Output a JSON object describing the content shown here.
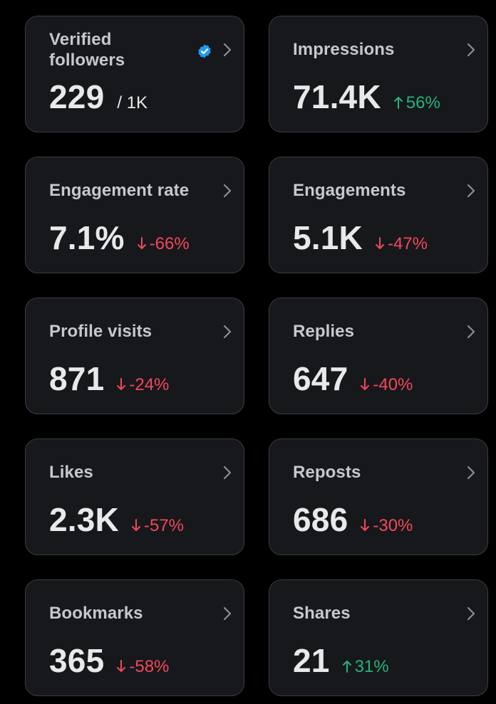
{
  "colors": {
    "background": "#000000",
    "card": "#16181c",
    "card_border": "#3a3d42",
    "label": "#c5c8cc",
    "value": "#e7e9ea",
    "positive": "#26b37a",
    "negative": "#f4475a",
    "verified_badge": "#1d9bf0"
  },
  "cards": [
    {
      "label": "Verified followers",
      "value": "229",
      "suffix": "/ 1K",
      "icon": "verified-badge-icon"
    },
    {
      "label": "Impressions",
      "value": "71.4K",
      "delta": "56%",
      "direction": "up"
    },
    {
      "label": "Engagement rate",
      "value": "7.1%",
      "delta": "-66%",
      "direction": "down"
    },
    {
      "label": "Engagements",
      "value": "5.1K",
      "delta": "-47%",
      "direction": "down"
    },
    {
      "label": "Profile visits",
      "value": "871",
      "delta": "-24%",
      "direction": "down"
    },
    {
      "label": "Replies",
      "value": "647",
      "delta": "-40%",
      "direction": "down"
    },
    {
      "label": "Likes",
      "value": "2.3K",
      "delta": "-57%",
      "direction": "down"
    },
    {
      "label": "Reposts",
      "value": "686",
      "delta": "-30%",
      "direction": "down"
    },
    {
      "label": "Bookmarks",
      "value": "365",
      "delta": "-58%",
      "direction": "down"
    },
    {
      "label": "Shares",
      "value": "21",
      "delta": "31%",
      "direction": "up"
    }
  ]
}
